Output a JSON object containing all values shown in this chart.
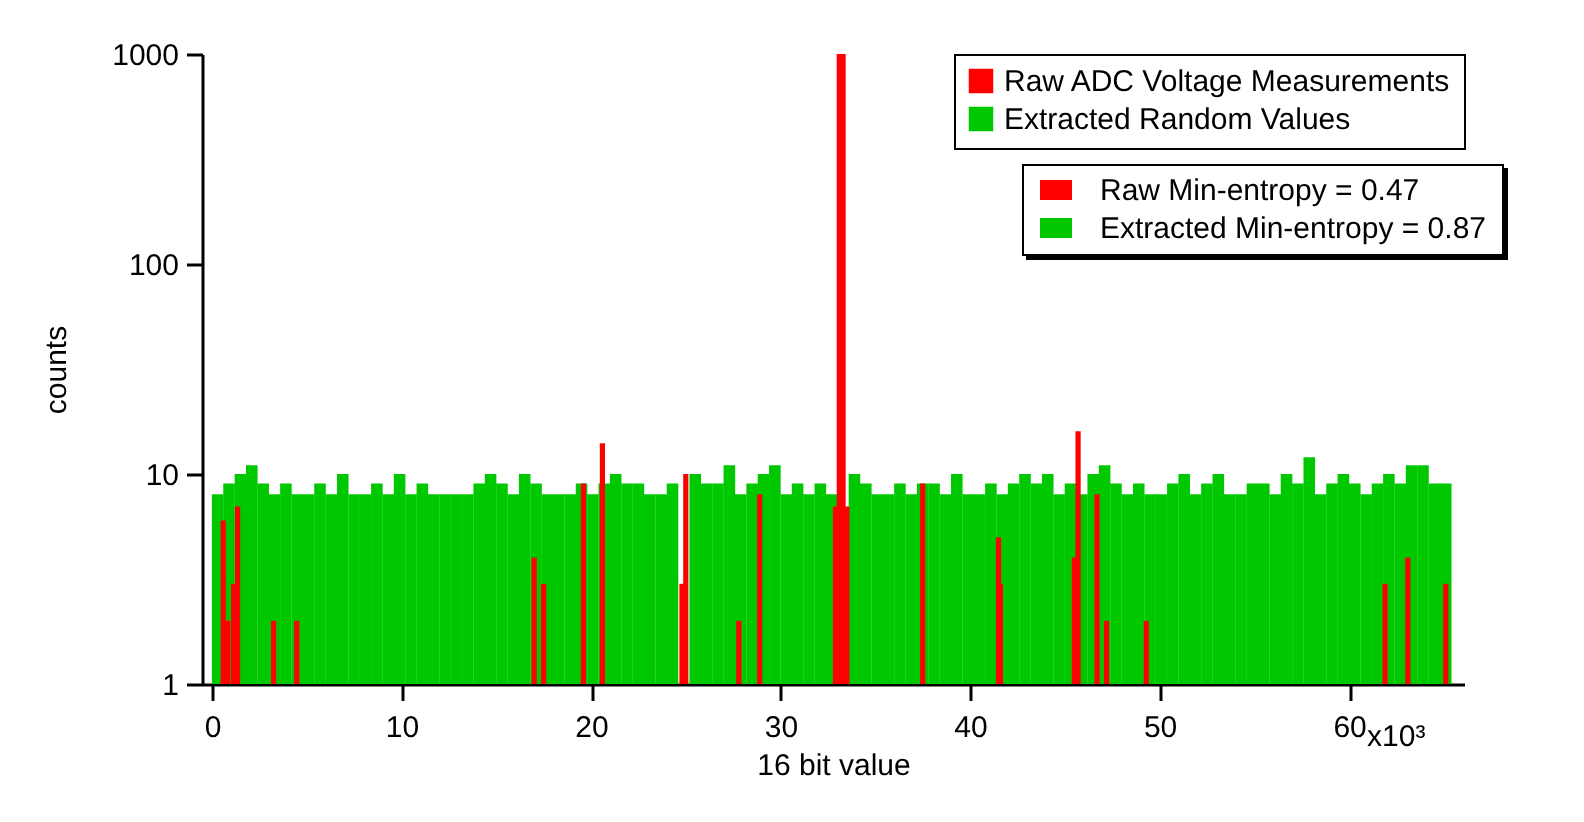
{
  "chart_data": {
    "type": "bar",
    "xlabel": "16 bit value",
    "ylabel": "counts",
    "log": "y",
    "grid": false,
    "legend": "top right",
    "xlim": [
      0,
      65.536
    ],
    "xticks": [
      0,
      10,
      20,
      30,
      40,
      50,
      60
    ],
    "ylim": [
      1,
      1000
    ],
    "yticks": [
      1,
      10,
      100,
      1000
    ],
    "annotations": [
      "Raw Min-entropy = 0.47",
      "Extracted Min-entropy = 0.87",
      "x10³"
    ],
    "series": [
      {
        "name": "Extracted Random Values",
        "color": "#00c800",
        "x": [
          0.3,
          0.9,
          1.5,
          2.1,
          2.7,
          3.3,
          3.9,
          4.5,
          5.1,
          5.7,
          6.3,
          6.9,
          7.5,
          8.1,
          8.7,
          9.3,
          9.9,
          10.5,
          11.1,
          11.7,
          12.3,
          12.9,
          13.5,
          14.1,
          14.7,
          15.3,
          15.9,
          16.5,
          17.1,
          17.7,
          18.3,
          18.9,
          19.5,
          20.1,
          20.7,
          21.3,
          21.9,
          22.5,
          23.1,
          23.7,
          24.3,
          24.9,
          25.5,
          26.1,
          26.7,
          27.3,
          27.9,
          28.5,
          29.1,
          29.7,
          30.3,
          30.9,
          31.5,
          32.1,
          32.7,
          33.3,
          33.9,
          34.5,
          35.1,
          35.7,
          36.3,
          36.9,
          37.5,
          38.1,
          38.7,
          39.3,
          39.9,
          40.5,
          41.1,
          41.7,
          42.3,
          42.9,
          43.5,
          44.1,
          44.7,
          45.3,
          45.9,
          46.5,
          47.1,
          47.7,
          48.3,
          48.9,
          49.5,
          50.1,
          50.7,
          51.3,
          51.9,
          52.5,
          53.1,
          53.7,
          54.3,
          54.9,
          55.5,
          56.1,
          56.7,
          57.3,
          57.9,
          58.5,
          59.1,
          59.7,
          60.3,
          60.9,
          61.5,
          62.1,
          62.7,
          63.3,
          63.9,
          64.5,
          65.1
        ],
        "values": [
          8,
          9,
          10,
          11,
          9,
          8,
          9,
          8,
          8,
          9,
          8,
          10,
          8,
          8,
          9,
          8,
          10,
          8,
          9,
          8,
          8,
          8,
          8,
          9,
          10,
          9,
          8,
          10,
          9,
          8,
          8,
          8,
          9,
          8,
          9,
          10,
          9,
          9,
          8,
          8,
          9,
          null,
          10,
          9,
          9,
          11,
          8,
          9,
          10,
          11,
          8,
          9,
          8,
          9,
          8,
          null,
          10,
          9,
          8,
          8,
          9,
          8,
          9,
          9,
          8,
          10,
          8,
          8,
          9,
          8,
          9,
          10,
          9,
          10,
          8,
          9,
          8,
          10,
          11,
          9,
          8,
          9,
          8,
          8,
          9,
          10,
          8,
          9,
          10,
          8,
          8,
          9,
          9,
          8,
          10,
          9,
          12,
          8,
          9,
          10,
          9,
          8,
          9,
          10,
          9,
          11,
          11,
          9,
          9
        ]
      },
      {
        "name": "Raw ADC Voltage Measurements",
        "color": "#ff0000",
        "x": [
          0.59,
          0.83,
          1.14,
          1.35,
          3.25,
          4.47,
          17.0,
          17.5,
          19.6,
          20.6,
          24.8,
          25.0,
          27.8,
          28.9,
          32.9,
          33.1,
          33.3,
          33.5,
          37.5,
          41.5,
          41.6,
          45.5,
          45.7,
          46.7,
          47.2,
          49.3,
          61.9,
          63.1,
          65.1
        ],
        "values": [
          6,
          2,
          3,
          7,
          2,
          2,
          4,
          3,
          9,
          14,
          3,
          10,
          2,
          8,
          7,
          1000,
          1000,
          7,
          9,
          5,
          3,
          4,
          16,
          8,
          2,
          2,
          3,
          4,
          3
        ]
      }
    ]
  }
}
